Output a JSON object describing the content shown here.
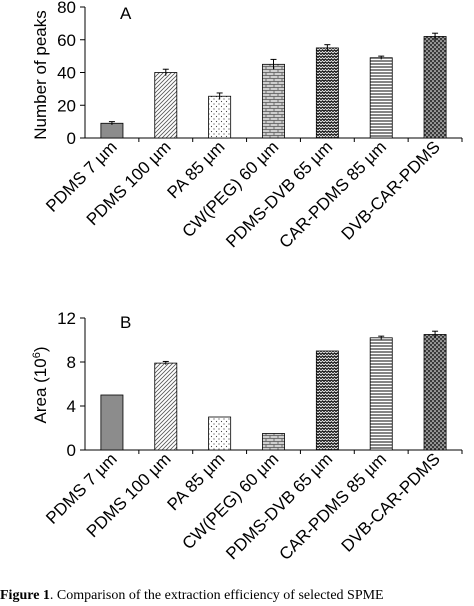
{
  "chart_data": [
    {
      "type": "bar",
      "panel_label": "A",
      "ylabel": "Number of peaks",
      "xlabel": "",
      "ylim": [
        0,
        80
      ],
      "yticks": [
        0,
        20,
        40,
        60,
        80
      ],
      "categories": [
        "PDMS 7 µm",
        "PDMS 100 µm",
        "PA 85 µm",
        "CW(PEG) 60 µm",
        "PDMS-DVB 65 µm",
        "CAR-PDMS 85 µm",
        "DVB-CAR-PDMS"
      ],
      "values": [
        9,
        40,
        25.5,
        45,
        55,
        49,
        62
      ],
      "errors": [
        1,
        2,
        2,
        3,
        2,
        1,
        2
      ],
      "grid": false,
      "legend": "none"
    },
    {
      "type": "bar",
      "panel_label": "B",
      "ylabel": "Area (10",
      "ylabel_sup": "6",
      "ylabel_end": ")",
      "xlabel": "",
      "ylim": [
        0,
        12
      ],
      "yticks": [
        0,
        4,
        8,
        12
      ],
      "categories": [
        "PDMS 7 µm",
        "PDMS 100 µm",
        "PA 85 µm",
        "CW(PEG) 60 µm",
        "PDMS-DVB 65 µm",
        "CAR-PDMS 85 µm",
        "DVB-CAR-PDMS"
      ],
      "values": [
        5.0,
        7.9,
        3.0,
        1.5,
        9.0,
        10.2,
        10.5
      ],
      "errors": [
        0,
        0.15,
        0,
        0,
        0,
        0.15,
        0.3
      ],
      "grid": false,
      "legend": "none"
    }
  ],
  "caption": {
    "label": "Figure 1",
    "text": ". Comparison of the extraction efficiency of selected SPME"
  },
  "patterns": [
    "solid-gray",
    "diagonal-light",
    "dots-sparse",
    "brick",
    "zigzag-dark",
    "horizontal-lines",
    "dense-dots"
  ],
  "colors": {
    "axis": "#000000",
    "bar_stroke": "#000000",
    "gray_fill": "#8c8c8c"
  }
}
